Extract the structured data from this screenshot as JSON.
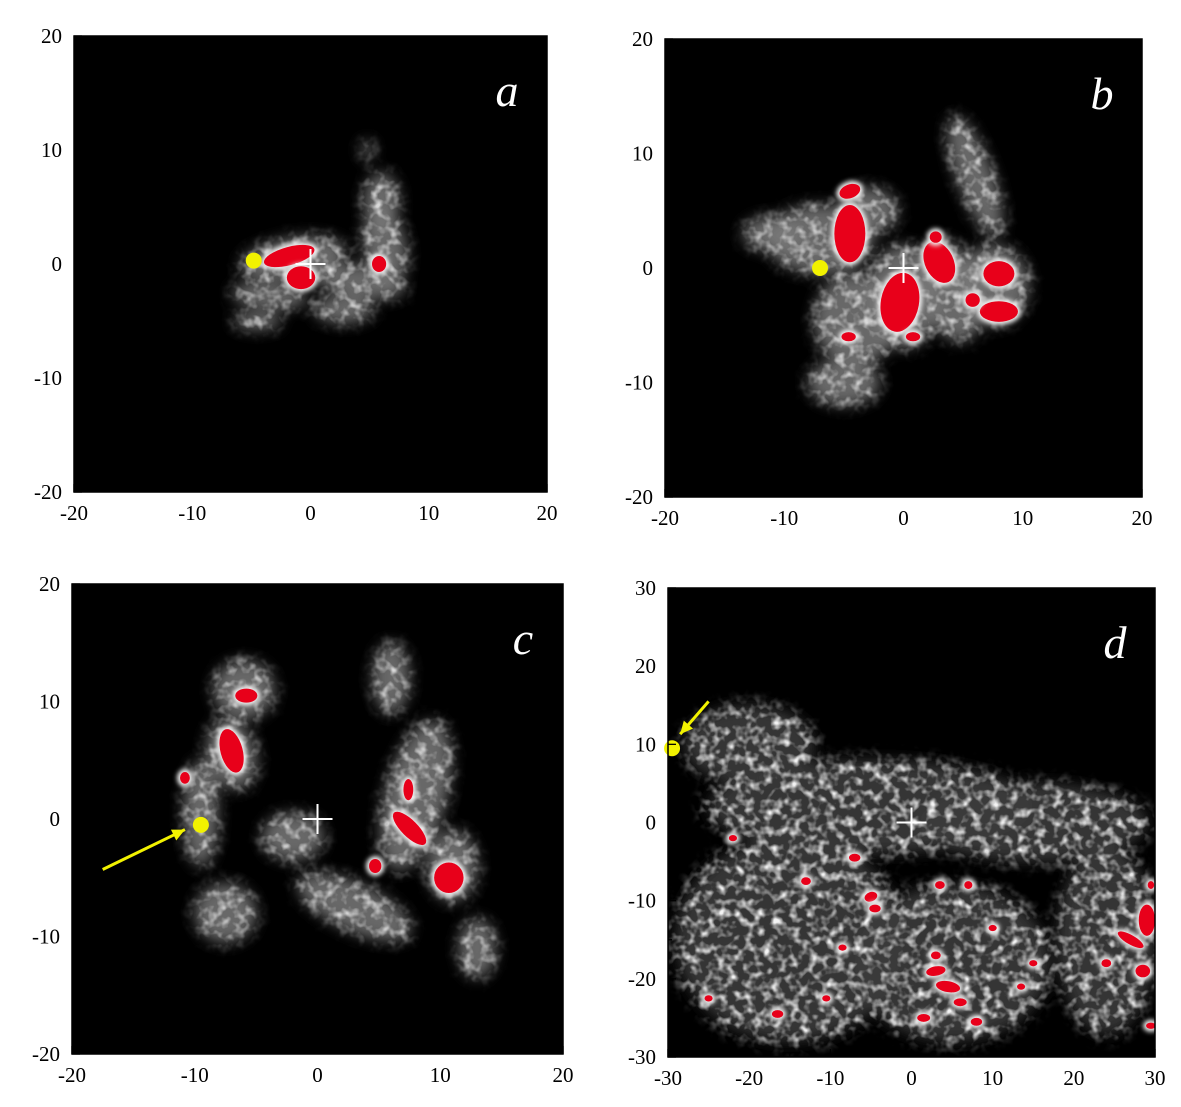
{
  "chart_data": [
    {
      "type": "heatmap",
      "panel_label": "a",
      "xlim": [
        -20,
        20
      ],
      "ylim": [
        -20,
        20
      ],
      "x_ticks": [
        -20,
        -10,
        0,
        10,
        20
      ],
      "y_ticks": [
        20,
        10,
        0,
        -10,
        -20
      ],
      "background": "#000000",
      "marker": {
        "x": -4.8,
        "y": 0.3,
        "color": "#f2f200"
      },
      "center_cross": {
        "x": 0,
        "y": 0
      },
      "red_regions": [
        {
          "x": -1.8,
          "y": 0.7,
          "rx": 2.2,
          "ry": 0.8,
          "rot": 15
        },
        {
          "x": -0.8,
          "y": -1.2,
          "rx": 1.2,
          "ry": 1.0,
          "rot": 0
        },
        {
          "x": 5.8,
          "y": 0.0,
          "rx": 0.6,
          "ry": 0.7,
          "rot": 0
        }
      ],
      "glow_regions": [
        {
          "x": -1.5,
          "y": 0.5,
          "rx": 4.5,
          "ry": 1.8,
          "rot": 10
        },
        {
          "x": -3.5,
          "y": -2.8,
          "rx": 3.2,
          "ry": 1.1,
          "rot": -5
        },
        {
          "x": -4.5,
          "y": -5.0,
          "rx": 2.0,
          "ry": 0.8,
          "rot": 0
        },
        {
          "x": 4.0,
          "y": -1.5,
          "rx": 4.0,
          "ry": 1.4,
          "rot": -10
        },
        {
          "x": 6.3,
          "y": 1.5,
          "rx": 1.8,
          "ry": 3.5,
          "rot": 10
        },
        {
          "x": 6.0,
          "y": 5.5,
          "rx": 1.5,
          "ry": 2.5,
          "rot": 0
        },
        {
          "x": 2.8,
          "y": -4.0,
          "rx": 2.5,
          "ry": 1.2,
          "rot": 0
        },
        {
          "x": 4.8,
          "y": 10.0,
          "rx": 0.5,
          "ry": 0.8,
          "rot": 0
        }
      ]
    },
    {
      "type": "heatmap",
      "panel_label": "b",
      "xlim": [
        -20,
        20
      ],
      "ylim": [
        -20,
        20
      ],
      "x_ticks": [
        -20,
        -10,
        0,
        10,
        20
      ],
      "y_ticks": [
        20,
        10,
        0,
        -10,
        -20
      ],
      "background": "#000000",
      "marker": {
        "x": -7.0,
        "y": 0.0,
        "color": "#f2f200"
      },
      "center_cross": {
        "x": 0,
        "y": 0
      },
      "red_regions": [
        {
          "x": -4.5,
          "y": 3.0,
          "rx": 1.3,
          "ry": 2.5,
          "rot": 0
        },
        {
          "x": -4.5,
          "y": 6.7,
          "rx": 0.9,
          "ry": 0.6,
          "rot": 20
        },
        {
          "x": -0.3,
          "y": -3.0,
          "rx": 1.6,
          "ry": 2.6,
          "rot": -10
        },
        {
          "x": 3.0,
          "y": 0.5,
          "rx": 1.2,
          "ry": 1.9,
          "rot": 25
        },
        {
          "x": 8.0,
          "y": -0.5,
          "rx": 1.3,
          "ry": 1.1,
          "rot": 0
        },
        {
          "x": 8.0,
          "y": -3.8,
          "rx": 1.6,
          "ry": 0.9,
          "rot": 0
        },
        {
          "x": 5.8,
          "y": -2.8,
          "rx": 0.6,
          "ry": 0.6,
          "rot": 0
        },
        {
          "x": -4.6,
          "y": -6.0,
          "rx": 0.6,
          "ry": 0.4,
          "rot": 0
        },
        {
          "x": 0.8,
          "y": -6.0,
          "rx": 0.6,
          "ry": 0.4,
          "rot": 0
        },
        {
          "x": 2.7,
          "y": 2.7,
          "rx": 0.5,
          "ry": 0.5,
          "rot": 0
        }
      ],
      "glow_regions": [
        {
          "x": -7.0,
          "y": 2.5,
          "rx": 4.5,
          "ry": 3.0,
          "rot": 0
        },
        {
          "x": -4.0,
          "y": -4.5,
          "rx": 3.5,
          "ry": 4.0,
          "rot": 0
        },
        {
          "x": 0.0,
          "y": -2.5,
          "rx": 3.0,
          "ry": 4.5,
          "rot": 0
        },
        {
          "x": 4.0,
          "y": -2.0,
          "rx": 2.5,
          "ry": 4.5,
          "rot": 15
        },
        {
          "x": 7.5,
          "y": -1.5,
          "rx": 3.0,
          "ry": 3.5,
          "rot": 0
        },
        {
          "x": 6.0,
          "y": 8.0,
          "rx": 1.5,
          "ry": 5.5,
          "rot": 20
        },
        {
          "x": -5.0,
          "y": -10.0,
          "rx": 3.0,
          "ry": 2.0,
          "rot": 0
        },
        {
          "x": -11.0,
          "y": 3.0,
          "rx": 2.5,
          "ry": 1.5,
          "rot": 0
        },
        {
          "x": -3.0,
          "y": 5.0,
          "rx": 2.5,
          "ry": 2.0,
          "rot": 0
        }
      ]
    },
    {
      "type": "heatmap",
      "panel_label": "c",
      "xlim": [
        -20,
        20
      ],
      "ylim": [
        -20,
        20
      ],
      "x_ticks": [
        -20,
        -10,
        0,
        10,
        20
      ],
      "y_ticks": [
        20,
        10,
        0,
        -10,
        -20
      ],
      "background": "#000000",
      "marker": {
        "x": -9.5,
        "y": -0.5,
        "color": "#f2f200"
      },
      "arrow": {
        "from": {
          "x": -17.5,
          "y": -4.3
        },
        "to": {
          "x": -10.8,
          "y": -0.9
        },
        "color": "#f2f200"
      },
      "center_cross": {
        "x": 0,
        "y": 0
      },
      "red_regions": [
        {
          "x": -7.0,
          "y": 5.8,
          "rx": 0.9,
          "ry": 1.9,
          "rot": 15
        },
        {
          "x": -5.8,
          "y": 10.5,
          "rx": 0.9,
          "ry": 0.6,
          "rot": 0
        },
        {
          "x": 10.7,
          "y": -5.0,
          "rx": 1.2,
          "ry": 1.3,
          "rot": 0
        },
        {
          "x": 7.5,
          "y": -0.8,
          "rx": 1.8,
          "ry": 0.7,
          "rot": -45
        },
        {
          "x": 7.4,
          "y": 2.5,
          "rx": 0.4,
          "ry": 0.9,
          "rot": 0
        },
        {
          "x": 4.7,
          "y": -4.0,
          "rx": 0.5,
          "ry": 0.6,
          "rot": 0
        },
        {
          "x": -10.8,
          "y": 3.5,
          "rx": 0.4,
          "ry": 0.5,
          "rot": 0
        }
      ],
      "glow_regions": [
        {
          "x": -7.0,
          "y": 5.5,
          "rx": 2.0,
          "ry": 3.0,
          "rot": 15
        },
        {
          "x": -6.0,
          "y": 11.0,
          "rx": 2.5,
          "ry": 2.5,
          "rot": 0
        },
        {
          "x": -9.5,
          "y": 0.5,
          "rx": 1.4,
          "ry": 4.5,
          "rot": 0
        },
        {
          "x": -7.5,
          "y": -8.0,
          "rx": 2.5,
          "ry": 2.5,
          "rot": 0
        },
        {
          "x": 3.0,
          "y": -7.5,
          "rx": 5.0,
          "ry": 2.0,
          "rot": -25
        },
        {
          "x": -2.0,
          "y": -1.5,
          "rx": 2.5,
          "ry": 2.0,
          "rot": 0
        },
        {
          "x": 8.0,
          "y": 2.0,
          "rx": 2.5,
          "ry": 6.5,
          "rot": -15
        },
        {
          "x": 11.0,
          "y": -4.0,
          "rx": 2.0,
          "ry": 3.0,
          "rot": 0
        },
        {
          "x": 6.0,
          "y": 12.0,
          "rx": 1.5,
          "ry": 3.0,
          "rot": 0
        },
        {
          "x": 13.0,
          "y": -11.0,
          "rx": 1.5,
          "ry": 2.5,
          "rot": 0
        }
      ]
    },
    {
      "type": "heatmap",
      "panel_label": "d",
      "xlim": [
        -30,
        30
      ],
      "ylim": [
        -30,
        30
      ],
      "x_ticks": [
        -30,
        -20,
        -10,
        0,
        10,
        20,
        30
      ],
      "y_ticks": [
        30,
        20,
        10,
        0,
        -10,
        -20,
        -30
      ],
      "background": "#000000",
      "marker": {
        "x": -29.5,
        "y": 9.5,
        "color": "#f2f200"
      },
      "arrow": {
        "from": {
          "x": -25.0,
          "y": 15.5
        },
        "to": {
          "x": -28.5,
          "y": 11.3
        },
        "color": "#f2f200"
      },
      "center_cross": {
        "x": 0,
        "y": 0
      },
      "red_regions": [
        {
          "x": -22.0,
          "y": -2.0,
          "rx": 0.5,
          "ry": 0.4,
          "rot": 0
        },
        {
          "x": -13.0,
          "y": -7.5,
          "rx": 0.6,
          "ry": 0.5,
          "rot": 0
        },
        {
          "x": -7.0,
          "y": -4.5,
          "rx": 0.7,
          "ry": 0.5,
          "rot": 0
        },
        {
          "x": -5.0,
          "y": -9.5,
          "rx": 0.8,
          "ry": 0.6,
          "rot": 20
        },
        {
          "x": -4.5,
          "y": -11.0,
          "rx": 0.7,
          "ry": 0.5,
          "rot": 0
        },
        {
          "x": 3.5,
          "y": -8.0,
          "rx": 0.6,
          "ry": 0.5,
          "rot": 0
        },
        {
          "x": 7.0,
          "y": -8.0,
          "rx": 0.5,
          "ry": 0.5,
          "rot": 0
        },
        {
          "x": 3.0,
          "y": -17.0,
          "rx": 0.6,
          "ry": 0.5,
          "rot": 0
        },
        {
          "x": 3.0,
          "y": -19.0,
          "rx": 1.2,
          "ry": 0.6,
          "rot": 10
        },
        {
          "x": 4.5,
          "y": -21.0,
          "rx": 1.5,
          "ry": 0.7,
          "rot": -10
        },
        {
          "x": 6.0,
          "y": -23.0,
          "rx": 0.8,
          "ry": 0.5,
          "rot": 0
        },
        {
          "x": 1.5,
          "y": -25.0,
          "rx": 0.8,
          "ry": 0.5,
          "rot": 0
        },
        {
          "x": 8.0,
          "y": -25.5,
          "rx": 0.7,
          "ry": 0.5,
          "rot": 0
        },
        {
          "x": -16.5,
          "y": -24.5,
          "rx": 0.7,
          "ry": 0.5,
          "rot": 0
        },
        {
          "x": -10.5,
          "y": -22.5,
          "rx": 0.5,
          "ry": 0.4,
          "rot": 0
        },
        {
          "x": 10.0,
          "y": -13.5,
          "rx": 0.5,
          "ry": 0.4,
          "rot": 0
        },
        {
          "x": 13.5,
          "y": -21.0,
          "rx": 0.5,
          "ry": 0.4,
          "rot": 0
        },
        {
          "x": 15.0,
          "y": -18.0,
          "rx": 0.5,
          "ry": 0.4,
          "rot": 0
        },
        {
          "x": 24.0,
          "y": -18.0,
          "rx": 0.6,
          "ry": 0.5,
          "rot": 0
        },
        {
          "x": 27.0,
          "y": -15.0,
          "rx": 1.8,
          "ry": 0.6,
          "rot": -30
        },
        {
          "x": 29.0,
          "y": -12.5,
          "rx": 1.0,
          "ry": 2.0,
          "rot": 0
        },
        {
          "x": 28.5,
          "y": -19.0,
          "rx": 0.9,
          "ry": 0.8,
          "rot": 0
        },
        {
          "x": 29.5,
          "y": -26.0,
          "rx": 0.6,
          "ry": 0.4,
          "rot": 0
        },
        {
          "x": -25.0,
          "y": -22.5,
          "rx": 0.5,
          "ry": 0.4,
          "rot": 0
        },
        {
          "x": -8.5,
          "y": -16.0,
          "rx": 0.5,
          "ry": 0.4,
          "rot": 0
        },
        {
          "x": 29.5,
          "y": -8.0,
          "rx": 0.4,
          "ry": 0.5,
          "rot": 0
        }
      ],
      "glow_regions": [
        {
          "x": -15.0,
          "y": -15.0,
          "rx": 14.0,
          "ry": 13.0,
          "rot": 0
        },
        {
          "x": 5.0,
          "y": -18.0,
          "rx": 12.0,
          "ry": 10.0,
          "rot": 0
        },
        {
          "x": 24.0,
          "y": -15.0,
          "rx": 6.0,
          "ry": 12.0,
          "rot": 0
        },
        {
          "x": -5.0,
          "y": 2.0,
          "rx": 20.0,
          "ry": 6.0,
          "rot": 0
        },
        {
          "x": -20.0,
          "y": 10.0,
          "rx": 8.0,
          "ry": 5.0,
          "rot": 0
        },
        {
          "x": 15.0,
          "y": 0.0,
          "rx": 14.0,
          "ry": 5.0,
          "rot": 0
        }
      ]
    }
  ]
}
